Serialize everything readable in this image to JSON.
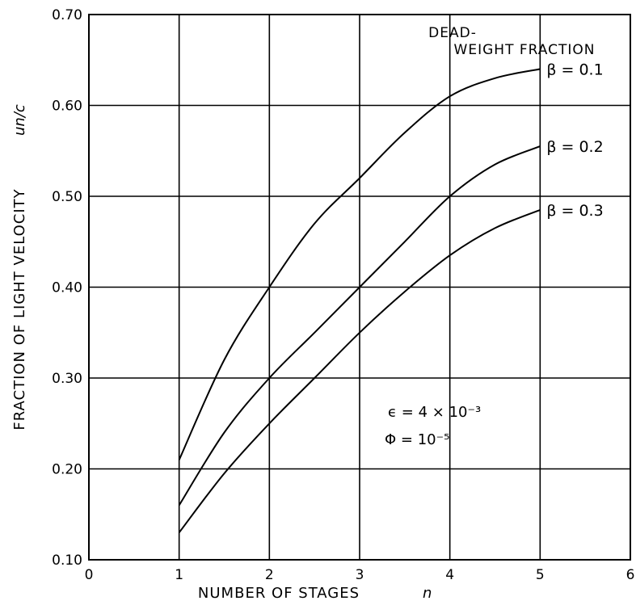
{
  "chart_data": {
    "type": "line",
    "title": "",
    "xlabel": "NUMBER OF STAGES",
    "xlabel_symbol": "n",
    "ylabel": "FRACTION OF LIGHT VELOCITY",
    "ylabel_symbol": "un/c",
    "xlim": [
      0,
      6
    ],
    "ylim": [
      0.1,
      0.7
    ],
    "x_ticks": [
      "0",
      "1",
      "2",
      "3",
      "4",
      "5",
      "6"
    ],
    "y_ticks": [
      "0.10",
      "0.20",
      "0.30",
      "0.40",
      "0.50",
      "0.60",
      "0.70"
    ],
    "grid": true,
    "legend_title_line1": "DEAD-",
    "legend_title_line2": "WEIGHT FRACTION",
    "series": [
      {
        "name": "β = 0.1",
        "x": [
          1,
          1.5,
          2,
          2.5,
          3,
          3.5,
          4,
          4.5,
          5
        ],
        "values": [
          0.21,
          0.32,
          0.4,
          0.47,
          0.52,
          0.57,
          0.61,
          0.63,
          0.64
        ]
      },
      {
        "name": "β = 0.2",
        "x": [
          1,
          1.5,
          2,
          2.5,
          3,
          3.5,
          4,
          4.5,
          5
        ],
        "values": [
          0.16,
          0.24,
          0.3,
          0.35,
          0.4,
          0.45,
          0.5,
          0.535,
          0.555
        ]
      },
      {
        "name": "β = 0.3",
        "x": [
          1,
          1.5,
          2,
          2.5,
          3,
          3.5,
          4,
          4.5,
          5
        ],
        "values": [
          0.13,
          0.195,
          0.25,
          0.3,
          0.35,
          0.395,
          0.435,
          0.465,
          0.485
        ]
      }
    ],
    "annotations": {
      "epsilon": "ϵ = 4 × 10⁻³",
      "phi": "Φ = 10⁻⁵"
    }
  }
}
